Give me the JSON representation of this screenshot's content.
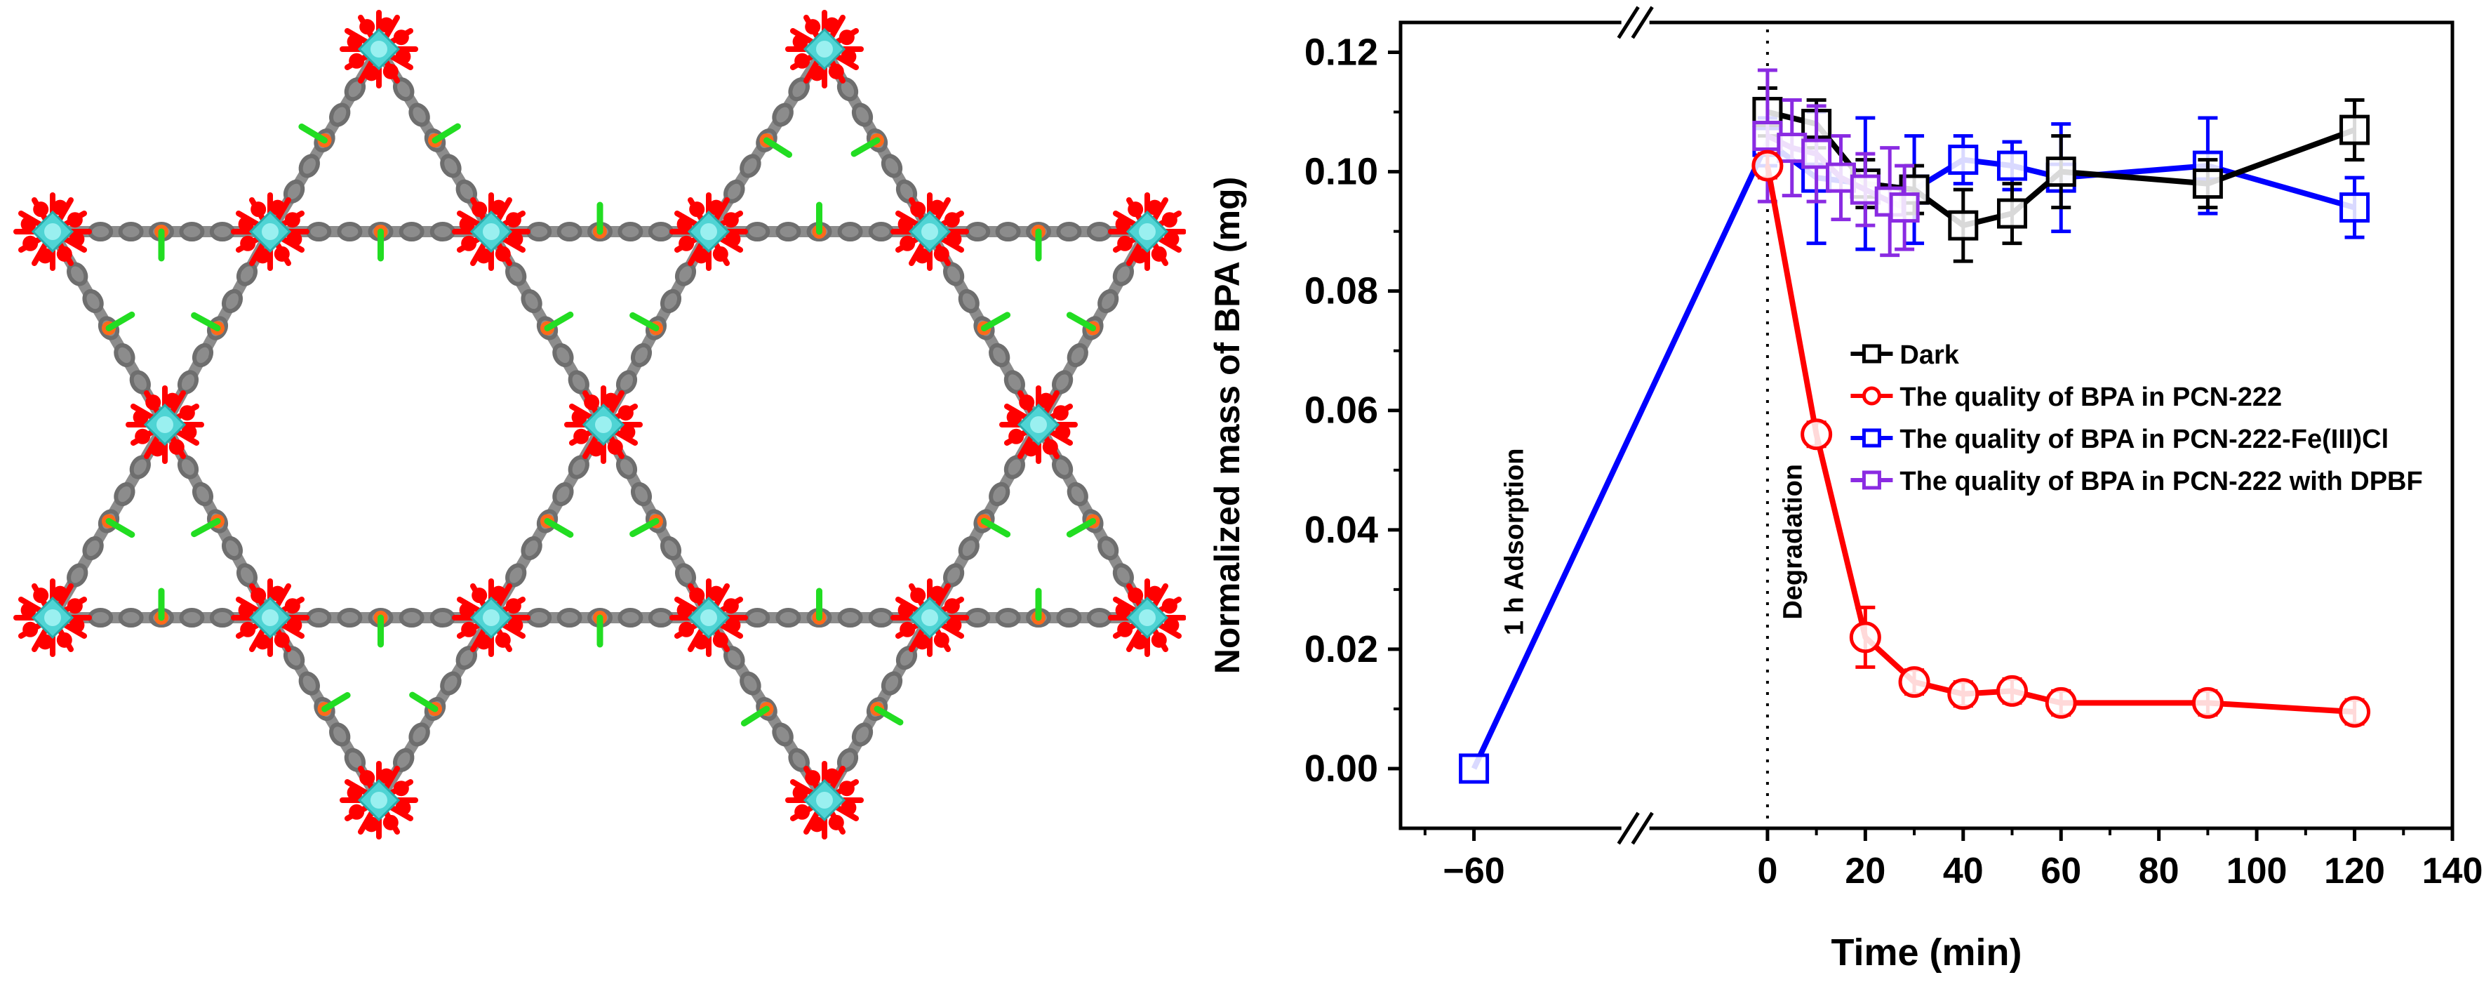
{
  "colors": {
    "zr": "#4fd4d4",
    "oxygen": "#ff0000",
    "carbon": "#8c8c8c",
    "chlorine": "#22dd22",
    "iron": "#ff6a1a"
  },
  "chart_data": {
    "type": "line",
    "xlabel": "Time (min)",
    "ylabel": "Normalized mass of BPA (mg)",
    "xlim": [
      -75,
      140
    ],
    "ylim": [
      -0.01,
      0.125
    ],
    "x_ticks": [
      "-60",
      "0",
      "20",
      "40",
      "60",
      "80",
      "100",
      "120",
      "140"
    ],
    "y_ticks": [
      "0.00",
      "0.02",
      "0.04",
      "0.06",
      "0.08",
      "0.10",
      "0.12"
    ],
    "axis_break": "between -60 and 0",
    "legend_position": "center-right",
    "annotations": [
      "1 h Adsorption",
      "Degradation"
    ],
    "series": [
      {
        "name": "Dark",
        "color": "#000000",
        "marker": "square",
        "x": [
          0,
          10,
          20,
          30,
          40,
          50,
          60,
          90,
          120
        ],
        "y": [
          0.11,
          0.108,
          0.098,
          0.097,
          0.091,
          0.093,
          0.1,
          0.098,
          0.107
        ],
        "err": [
          0.004,
          0.004,
          0.004,
          0.004,
          0.006,
          0.005,
          0.006,
          0.004,
          0.005
        ]
      },
      {
        "name": "The quality of BPA in PCN-222",
        "color": "#ff0000",
        "marker": "circle",
        "x": [
          0,
          10,
          20,
          30,
          40,
          50,
          60,
          90,
          120
        ],
        "y": [
          0.101,
          0.056,
          0.022,
          0.0145,
          0.0125,
          0.013,
          0.011,
          0.011,
          0.0095
        ],
        "err": [
          0.002,
          0.002,
          0.005,
          0.002,
          0.002,
          0.002,
          0.002,
          0.002,
          0.002
        ]
      },
      {
        "name": "The quality of BPA in PCN-222-Fe(III)Cl",
        "color": "#0000ff",
        "marker": "square",
        "x": [
          -60,
          0,
          10,
          20,
          30,
          40,
          50,
          60,
          90,
          120
        ],
        "y": [
          0,
          0.105,
          0.099,
          0.098,
          0.097,
          0.102,
          0.101,
          0.099,
          0.101,
          0.094
        ],
        "err": [
          0,
          0.004,
          0.011,
          0.011,
          0.009,
          0.004,
          0.004,
          0.009,
          0.008,
          0.005
        ]
      },
      {
        "name": "The quality of BPA in PCN-222 with DPBF",
        "color": "#8a2be2",
        "marker": "square",
        "x": [
          0,
          5,
          10,
          15,
          20,
          25,
          28
        ],
        "y": [
          0.106,
          0.104,
          0.103,
          0.099,
          0.097,
          0.095,
          0.094
        ],
        "err": [
          0.011,
          0.008,
          0.008,
          0.007,
          0.006,
          0.009,
          0.007
        ]
      }
    ]
  }
}
